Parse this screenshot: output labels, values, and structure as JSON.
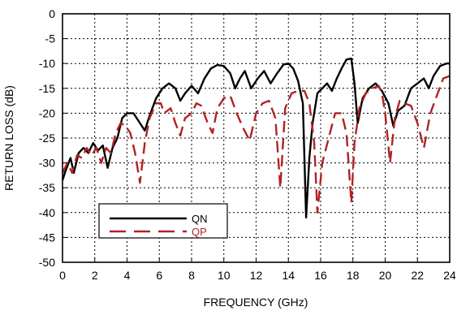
{
  "chart_data": {
    "type": "line",
    "title": "",
    "xlabel": "FREQUENCY (GHz)",
    "ylabel": "RETURN LOSS (dB)",
    "xlim": [
      0,
      24
    ],
    "ylim": [
      -50,
      0
    ],
    "xticks": [
      "0",
      "2",
      "4",
      "6",
      "8",
      "10",
      "12",
      "14",
      "16",
      "18",
      "20",
      "22",
      "24"
    ],
    "yticks": [
      "0",
      "-5",
      "-10",
      "-15",
      "-20",
      "-25",
      "-30",
      "-35",
      "-40",
      "-45",
      "-50"
    ],
    "grid": true,
    "legend_position": "bottom-left",
    "series": [
      {
        "name": "QN",
        "color": "#000000",
        "style": "solid",
        "points": [
          [
            0.0,
            -33.5
          ],
          [
            0.2,
            -31.5
          ],
          [
            0.5,
            -29.0
          ],
          [
            0.7,
            -32.0
          ],
          [
            1.0,
            -28.0
          ],
          [
            1.3,
            -27.0
          ],
          [
            1.6,
            -28.0
          ],
          [
            1.9,
            -26.0
          ],
          [
            2.2,
            -27.5
          ],
          [
            2.5,
            -26.5
          ],
          [
            2.8,
            -31.0
          ],
          [
            3.1,
            -27.0
          ],
          [
            3.4,
            -25.0
          ],
          [
            3.7,
            -21.0
          ],
          [
            4.0,
            -20.0
          ],
          [
            4.4,
            -20.0
          ],
          [
            4.8,
            -22.0
          ],
          [
            5.1,
            -23.5
          ],
          [
            5.4,
            -20.5
          ],
          [
            5.8,
            -17.0
          ],
          [
            6.2,
            -15.0
          ],
          [
            6.6,
            -14.0
          ],
          [
            7.0,
            -15.0
          ],
          [
            7.3,
            -17.5
          ],
          [
            7.6,
            -16.0
          ],
          [
            8.0,
            -14.5
          ],
          [
            8.4,
            -16.0
          ],
          [
            8.8,
            -13.0
          ],
          [
            9.2,
            -11.0
          ],
          [
            9.6,
            -10.3
          ],
          [
            10.0,
            -10.5
          ],
          [
            10.4,
            -12.0
          ],
          [
            10.7,
            -15.0
          ],
          [
            11.0,
            -13.0
          ],
          [
            11.3,
            -11.5
          ],
          [
            11.7,
            -15.0
          ],
          [
            12.1,
            -13.0
          ],
          [
            12.5,
            -11.5
          ],
          [
            12.9,
            -14.0
          ],
          [
            13.3,
            -12.0
          ],
          [
            13.7,
            -10.2
          ],
          [
            14.0,
            -10.0
          ],
          [
            14.3,
            -11.0
          ],
          [
            14.6,
            -13.5
          ],
          [
            14.9,
            -18.0
          ],
          [
            15.1,
            -41.0
          ],
          [
            15.3,
            -29.0
          ],
          [
            15.5,
            -22.0
          ],
          [
            15.8,
            -16.0
          ],
          [
            16.1,
            -15.0
          ],
          [
            16.4,
            -14.0
          ],
          [
            16.7,
            -15.5
          ],
          [
            17.0,
            -13.0
          ],
          [
            17.3,
            -11.0
          ],
          [
            17.6,
            -9.2
          ],
          [
            17.9,
            -9.0
          ],
          [
            18.1,
            -14.0
          ],
          [
            18.3,
            -22.0
          ],
          [
            18.6,
            -17.0
          ],
          [
            19.0,
            -15.0
          ],
          [
            19.4,
            -14.0
          ],
          [
            19.8,
            -15.5
          ],
          [
            20.2,
            -18.0
          ],
          [
            20.5,
            -22.5
          ],
          [
            20.8,
            -19.5
          ],
          [
            21.2,
            -18.5
          ],
          [
            21.6,
            -15.0
          ],
          [
            22.0,
            -14.0
          ],
          [
            22.4,
            -13.0
          ],
          [
            22.7,
            -15.0
          ],
          [
            23.0,
            -12.5
          ],
          [
            23.4,
            -10.5
          ],
          [
            23.8,
            -10.0
          ],
          [
            24.0,
            -10.0
          ]
        ]
      },
      {
        "name": "QP",
        "color": "#b22222",
        "style": "dashed",
        "points": [
          [
            0.0,
            -32.0
          ],
          [
            0.3,
            -30.0
          ],
          [
            0.6,
            -32.0
          ],
          [
            0.9,
            -28.5
          ],
          [
            1.2,
            -29.0
          ],
          [
            1.5,
            -27.0
          ],
          [
            1.8,
            -28.5
          ],
          [
            2.1,
            -27.0
          ],
          [
            2.4,
            -30.0
          ],
          [
            2.7,
            -27.0
          ],
          [
            3.0,
            -28.0
          ],
          [
            3.3,
            -24.0
          ],
          [
            3.6,
            -22.0
          ],
          [
            3.9,
            -22.5
          ],
          [
            4.2,
            -24.0
          ],
          [
            4.5,
            -28.0
          ],
          [
            4.8,
            -34.0
          ],
          [
            5.1,
            -26.0
          ],
          [
            5.4,
            -21.0
          ],
          [
            5.8,
            -18.0
          ],
          [
            6.1,
            -18.0
          ],
          [
            6.3,
            -20.0
          ],
          [
            6.7,
            -19.0
          ],
          [
            7.0,
            -22.0
          ],
          [
            7.3,
            -24.5
          ],
          [
            7.6,
            -21.0
          ],
          [
            8.0,
            -20.0
          ],
          [
            8.3,
            -18.0
          ],
          [
            8.6,
            -18.5
          ],
          [
            9.0,
            -22.0
          ],
          [
            9.3,
            -24.0
          ],
          [
            9.6,
            -19.0
          ],
          [
            10.0,
            -17.0
          ],
          [
            10.4,
            -16.5
          ],
          [
            10.8,
            -20.0
          ],
          [
            11.2,
            -23.0
          ],
          [
            11.6,
            -25.5
          ],
          [
            12.0,
            -20.0
          ],
          [
            12.4,
            -18.0
          ],
          [
            12.8,
            -17.5
          ],
          [
            13.2,
            -21.0
          ],
          [
            13.5,
            -35.0
          ],
          [
            13.8,
            -19.0
          ],
          [
            14.2,
            -16.0
          ],
          [
            14.6,
            -15.5
          ],
          [
            15.0,
            -15.5
          ],
          [
            15.3,
            -18.0
          ],
          [
            15.6,
            -26.0
          ],
          [
            15.8,
            -40.0
          ],
          [
            16.1,
            -30.0
          ],
          [
            16.5,
            -25.0
          ],
          [
            16.9,
            -20.0
          ],
          [
            17.3,
            -20.0
          ],
          [
            17.6,
            -24.0
          ],
          [
            17.9,
            -38.0
          ],
          [
            18.1,
            -26.0
          ],
          [
            18.4,
            -19.0
          ],
          [
            18.8,
            -16.0
          ],
          [
            19.2,
            -15.0
          ],
          [
            19.6,
            -14.5
          ],
          [
            19.8,
            -16.0
          ],
          [
            20.0,
            -20.0
          ],
          [
            20.3,
            -30.0
          ],
          [
            20.6,
            -21.0
          ],
          [
            20.9,
            -17.5
          ],
          [
            21.2,
            -18.0
          ],
          [
            21.6,
            -18.5
          ],
          [
            22.0,
            -22.0
          ],
          [
            22.4,
            -27.0
          ],
          [
            22.8,
            -20.0
          ],
          [
            23.2,
            -16.5
          ],
          [
            23.6,
            -13.0
          ],
          [
            24.0,
            -12.5
          ]
        ]
      }
    ]
  }
}
